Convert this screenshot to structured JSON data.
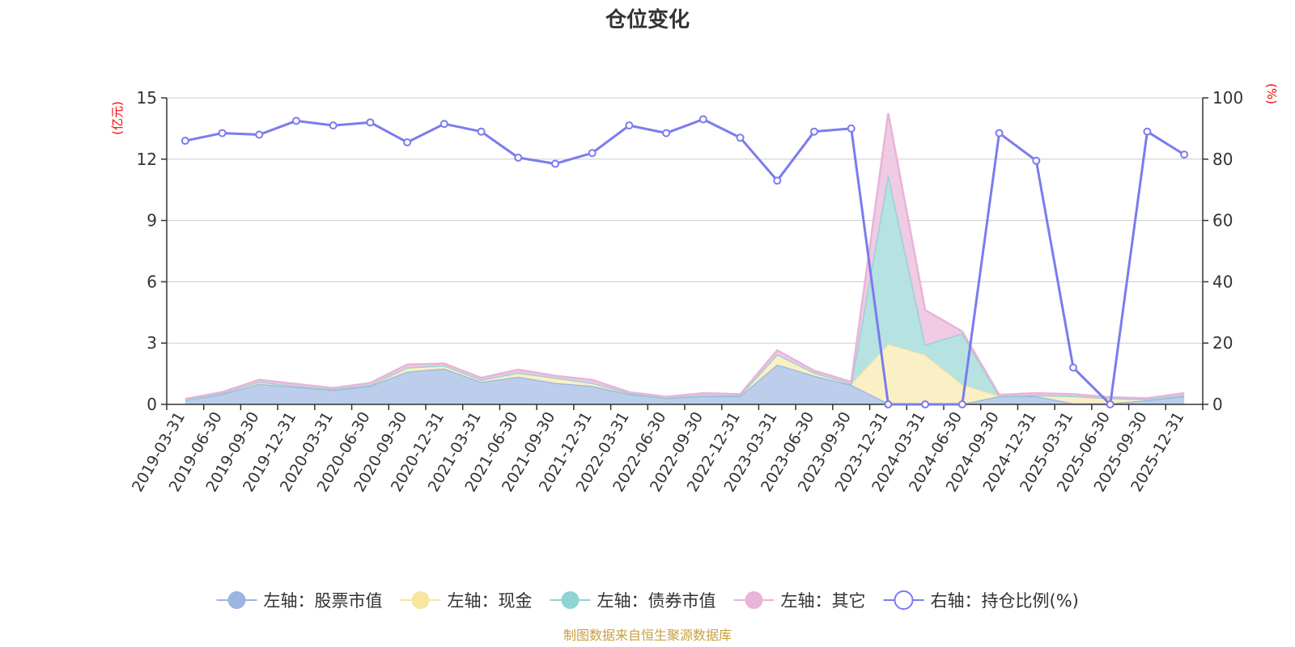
{
  "chart_data": {
    "type": "area",
    "title": "仓位变化",
    "left_unit": "(亿元)",
    "right_unit": "(%)",
    "left_axis": {
      "min": 0,
      "max": 15,
      "ticks": [
        0,
        3,
        6,
        9,
        12,
        15
      ]
    },
    "right_axis": {
      "min": 0,
      "max": 100,
      "ticks": [
        0,
        20,
        40,
        60,
        80,
        100
      ]
    },
    "grid": true,
    "legend_position": "bottom",
    "categories": [
      "2019-03-31",
      "2019-06-30",
      "2019-09-30",
      "2019-12-31",
      "2020-03-31",
      "2020-06-30",
      "2020-09-30",
      "2020-12-31",
      "2021-03-31",
      "2021-06-30",
      "2021-09-30",
      "2021-12-31",
      "2022-03-31",
      "2022-06-30",
      "2022-09-30",
      "2022-12-31",
      "2023-03-31",
      "2023-06-30",
      "2023-09-30",
      "2023-12-31",
      "2024-03-31",
      "2024-06-30",
      "2024-09-30",
      "2024-12-31",
      "2025-03-31",
      "2025-06-30",
      "2025-09-30",
      "2025-12-31"
    ],
    "series": [
      {
        "name": "左轴：股票市值",
        "axis": "left",
        "type": "area",
        "color": "#9bb5e0",
        "fill": "#b8cbea",
        "values": [
          0.2,
          0.5,
          1.0,
          0.85,
          0.7,
          0.9,
          1.6,
          1.75,
          1.1,
          1.35,
          1.05,
          0.9,
          0.5,
          0.3,
          0.4,
          0.4,
          1.95,
          1.4,
          0.95,
          0.05,
          0.02,
          0.02,
          0.4,
          0.4,
          0.05,
          0.05,
          0.2,
          0.4
        ]
      },
      {
        "name": "左轴：现金",
        "axis": "left",
        "type": "area",
        "color": "#f5e6a0",
        "fill": "#fbefc2",
        "values": [
          0.02,
          0.05,
          0.1,
          0.05,
          0.05,
          0.05,
          0.2,
          0.15,
          0.1,
          0.2,
          0.25,
          0.15,
          0.05,
          0.02,
          0.05,
          0.05,
          0.5,
          0.15,
          0.05,
          2.9,
          2.4,
          0.95,
          0.02,
          0.05,
          0.35,
          0.25,
          0.05,
          0.05
        ]
      },
      {
        "name": "左轴：债券市值",
        "axis": "left",
        "type": "area",
        "color": "#8fd3d3",
        "fill": "#b2e0e0",
        "values": [
          0,
          0,
          0,
          0,
          0,
          0,
          0,
          0,
          0,
          0,
          0,
          0,
          0,
          0,
          0,
          0,
          0,
          0,
          0,
          8.3,
          0.5,
          2.5,
          0,
          0,
          0,
          0,
          0,
          0
        ]
      },
      {
        "name": "左轴：其它",
        "axis": "left",
        "type": "area",
        "color": "#e8b4d8",
        "fill": "#efc8e3",
        "values": [
          0.05,
          0.05,
          0.1,
          0.1,
          0.05,
          0.1,
          0.15,
          0.1,
          0.1,
          0.15,
          0.1,
          0.15,
          0.05,
          0.05,
          0.1,
          0.05,
          0.2,
          0.1,
          0.1,
          3.0,
          1.7,
          0.1,
          0.05,
          0.1,
          0.1,
          0.05,
          0.05,
          0.1
        ]
      },
      {
        "name": "右轴：持仓比例(%)",
        "axis": "right",
        "type": "line",
        "color": "#7b7bef",
        "values": [
          86,
          88.5,
          88,
          92.5,
          91,
          92,
          85.5,
          91.5,
          89,
          80.5,
          78.5,
          82,
          91,
          88.5,
          93,
          87,
          73,
          89,
          90,
          0,
          0,
          0,
          88.5,
          79.5,
          12,
          0,
          89,
          81.5
        ]
      }
    ]
  },
  "source_note": "制图数据来自恒生聚源数据库"
}
